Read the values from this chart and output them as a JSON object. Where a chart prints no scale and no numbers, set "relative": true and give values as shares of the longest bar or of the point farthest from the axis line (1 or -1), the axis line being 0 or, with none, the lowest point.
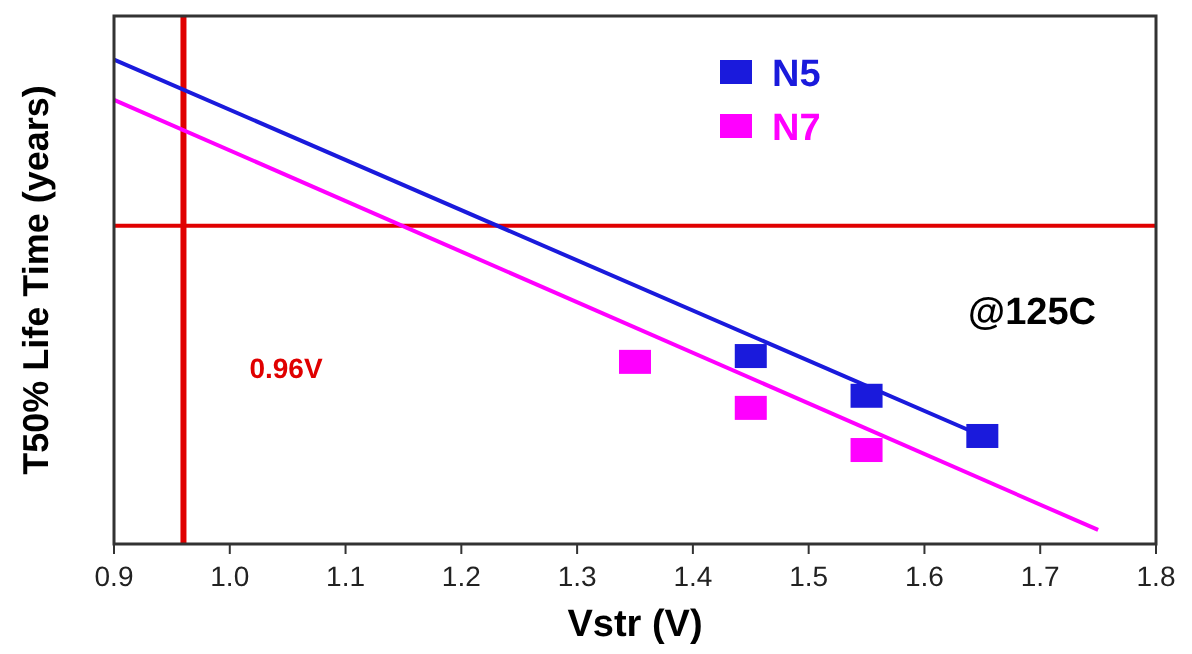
{
  "chart_data": {
    "type": "line",
    "xlabel": "Vstr (V)",
    "ylabel": "T50% Life Time (years)",
    "relative": true,
    "xlim": [
      0.9,
      1.8
    ],
    "xticks": [
      {
        "value": 0.9,
        "label": "0.9"
      },
      {
        "value": 1.0,
        "label": "1.0"
      },
      {
        "value": 1.1,
        "label": "1.1"
      },
      {
        "value": 1.2,
        "label": "1.2"
      },
      {
        "value": 1.3,
        "label": "1.3"
      },
      {
        "value": 1.4,
        "label": "1.4"
      },
      {
        "value": 1.5,
        "label": "1.5"
      },
      {
        "value": 1.6,
        "label": "1.6"
      },
      {
        "value": 1.7,
        "label": "1.7"
      },
      {
        "value": 1.8,
        "label": "1.8"
      }
    ],
    "series": [
      {
        "color": "#1a1adc",
        "x": [
          0.9,
          1.65
        ],
        "values": [
          1.0,
          0.223
        ],
        "marker": "none"
      },
      {
        "color": "#ff00ff",
        "x": [
          0.9,
          1.75
        ],
        "values": [
          0.917,
          0.029
        ],
        "marker": "none"
      },
      {
        "type": "scatter",
        "name": "N5",
        "color": "#1a1adc",
        "x": [
          1.45,
          1.55,
          1.65
        ],
        "values": [
          0.388,
          0.306,
          0.223
        ],
        "marker": "square"
      },
      {
        "type": "scatter",
        "name": "N7",
        "color": "#ff00ff",
        "x": [
          1.35,
          1.45,
          1.55
        ],
        "values": [
          0.376,
          0.281,
          0.194
        ],
        "marker": "square"
      }
    ],
    "ref_lines": [
      {
        "axis": "x",
        "value": 0.96,
        "label": "0.96V",
        "color": "#e00000"
      },
      {
        "axis": "y",
        "value": 0.657,
        "color": "#e00000"
      }
    ],
    "annotations": [
      "@125C"
    ],
    "legend": "top right",
    "grid": false
  }
}
